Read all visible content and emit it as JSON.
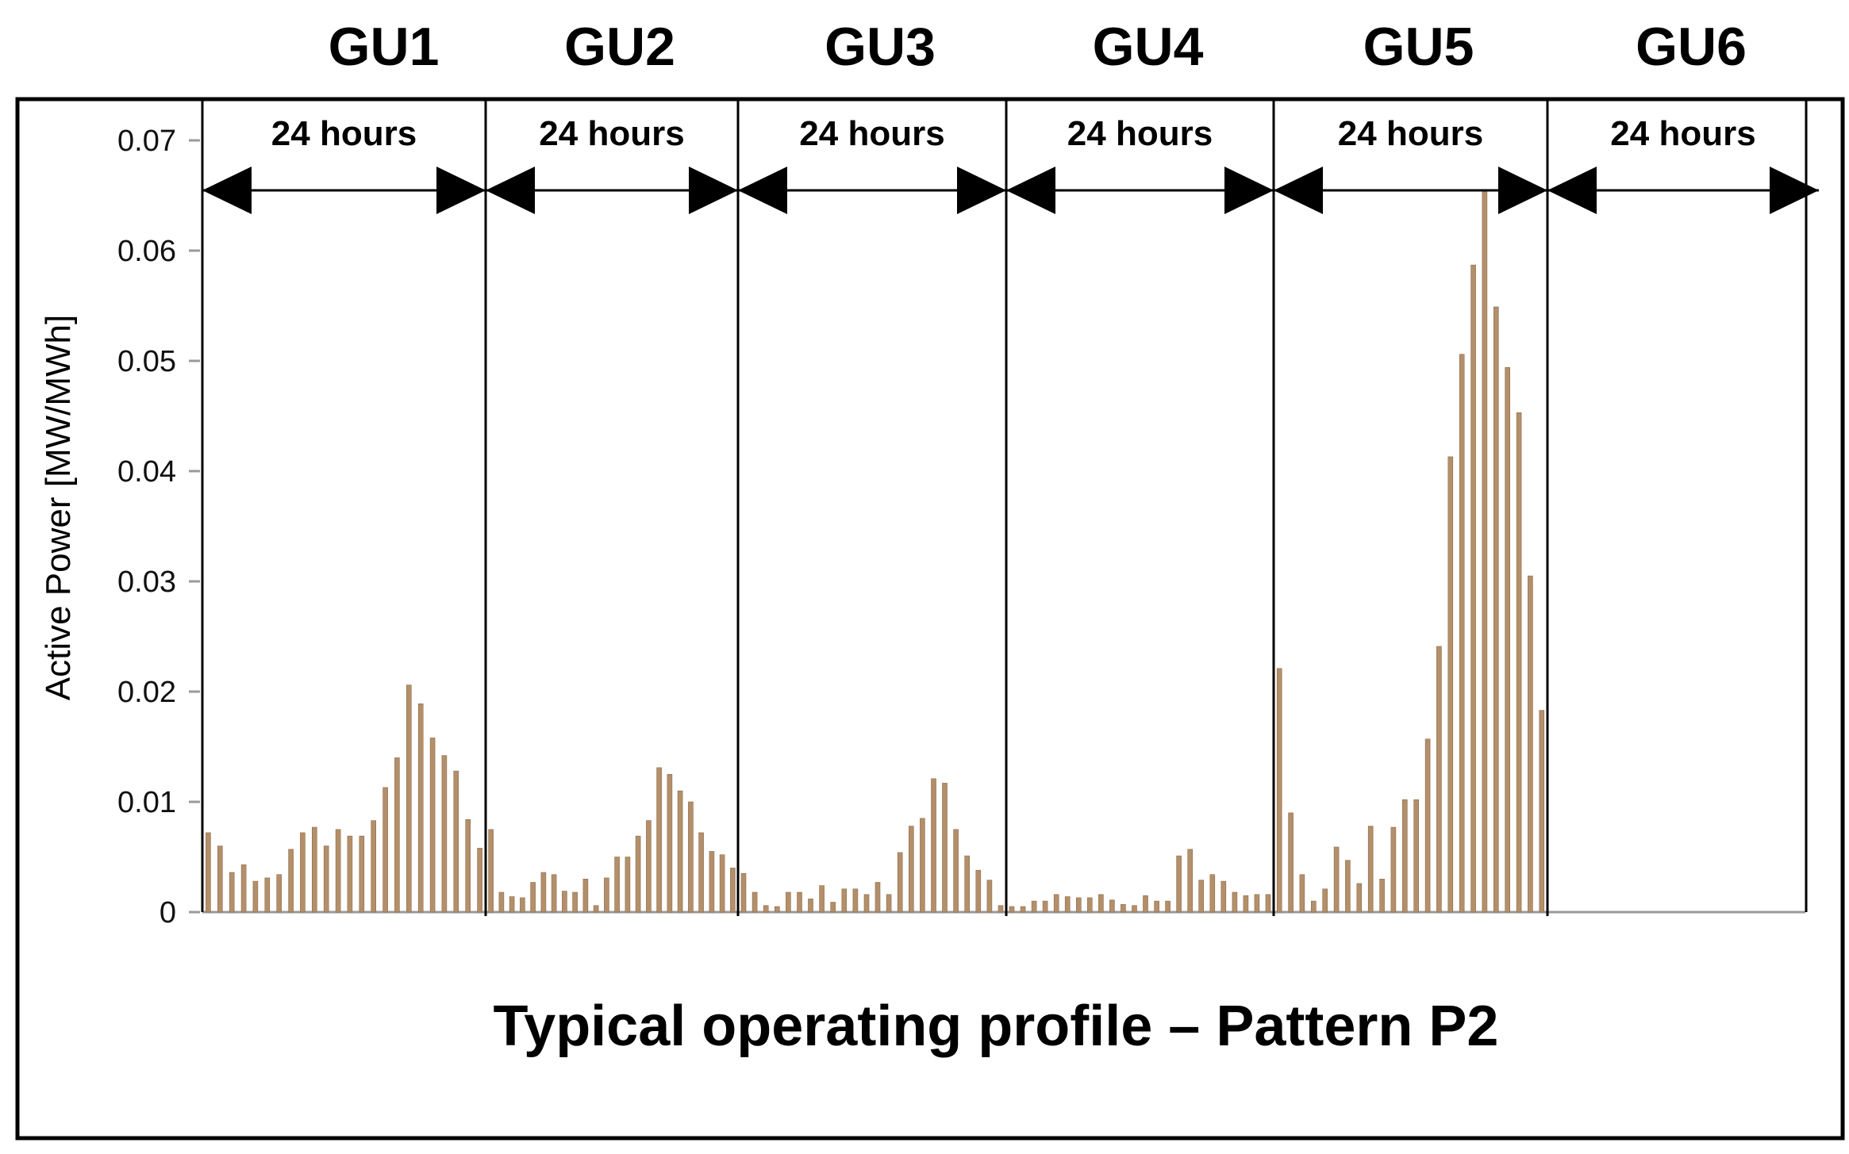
{
  "colors": {
    "bar": "#b38f6a",
    "bar_edge": "#8f6c4b",
    "line": "#000000",
    "background": "#ffffff"
  },
  "chart_data": {
    "type": "bar",
    "title": "Typical operating profile – Pattern P2",
    "ylabel": "Active Power  [MW/MWh]",
    "ylim": [
      0,
      0.07
    ],
    "yticks": [
      0,
      0.01,
      0.02,
      0.03,
      0.04,
      0.05,
      0.06,
      0.07
    ],
    "ytick_labels": [
      "0",
      "0.01",
      "0.02",
      "0.03",
      "0.04",
      "0.05",
      "0.06",
      "0.07"
    ],
    "grid": false,
    "hours_per_unit": 24,
    "span_label": "24 hours",
    "units": [
      {
        "name": "GU1",
        "values": [
          0.0072,
          0.006,
          0.0036,
          0.0043,
          0.0028,
          0.0031,
          0.0034,
          0.0057,
          0.0072,
          0.0077,
          0.006,
          0.0075,
          0.0069,
          0.0069,
          0.0083,
          0.0113,
          0.014,
          0.0206,
          0.0189,
          0.0158,
          0.0142,
          0.0128,
          0.0084,
          0.0058
        ]
      },
      {
        "name": "GU2",
        "values": [
          0.0075,
          0.0018,
          0.0014,
          0.0013,
          0.0027,
          0.0036,
          0.0034,
          0.0019,
          0.0018,
          0.003,
          0.0006,
          0.0031,
          0.005,
          0.005,
          0.0069,
          0.0083,
          0.0131,
          0.0125,
          0.011,
          0.01,
          0.0072,
          0.0055,
          0.0052,
          0.004
        ]
      },
      {
        "name": "GU3",
        "values": [
          0.0035,
          0.0018,
          0.0006,
          0.0005,
          0.0018,
          0.0018,
          0.0012,
          0.0024,
          0.0009,
          0.0021,
          0.0021,
          0.0016,
          0.0027,
          0.0016,
          0.0054,
          0.0078,
          0.0085,
          0.0121,
          0.0117,
          0.0075,
          0.0051,
          0.0038,
          0.0029,
          0.0006
        ]
      },
      {
        "name": "GU4",
        "values": [
          0.0005,
          0.0005,
          0.001,
          0.001,
          0.0016,
          0.0014,
          0.0013,
          0.0013,
          0.0016,
          0.0011,
          0.0007,
          0.0006,
          0.0015,
          0.001,
          0.001,
          0.0051,
          0.0057,
          0.0029,
          0.0034,
          0.0028,
          0.0018,
          0.0015,
          0.0016,
          0.0016
        ]
      },
      {
        "name": "GU5",
        "values": [
          0.0221,
          0.009,
          0.0034,
          0.001,
          0.0021,
          0.0059,
          0.0047,
          0.0026,
          0.0078,
          0.003,
          0.0077,
          0.0102,
          0.0102,
          0.0157,
          0.0241,
          0.0413,
          0.0506,
          0.0587,
          0.0654,
          0.0549,
          0.0494,
          0.0453,
          0.0305,
          0.0183
        ]
      },
      {
        "name": "GU6",
        "values": []
      }
    ]
  }
}
